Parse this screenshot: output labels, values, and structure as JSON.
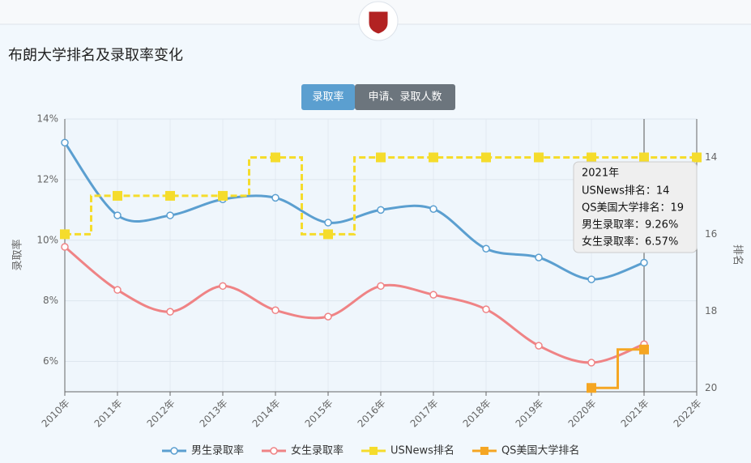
{
  "header": {
    "title": "布朗大学排名及录取率变化",
    "tabs": [
      "录取率",
      "申请、录取人数"
    ]
  },
  "chart_data": {
    "type": "line",
    "categories": [
      "2010年",
      "2011年",
      "2012年",
      "2013年",
      "2014年",
      "2015年",
      "2016年",
      "2017年",
      "2018年",
      "2019年",
      "2020年",
      "2021年",
      "2022年"
    ],
    "ylabel": "录取率",
    "y2label": "排名",
    "ylim": [
      5,
      14
    ],
    "yticks": [
      {
        "value": 6,
        "label": "6%"
      },
      {
        "value": 8,
        "label": "8%"
      },
      {
        "value": 10,
        "label": "10%"
      },
      {
        "value": 12,
        "label": "12%"
      },
      {
        "value": 14,
        "label": "14%"
      }
    ],
    "y2lim": [
      13,
      20.1
    ],
    "y2_inverted": true,
    "y2ticks": [
      14,
      16,
      18,
      20
    ],
    "series": [
      {
        "name": "男生录取率",
        "color": "#5b9fd0",
        "style": "smooth",
        "values": [
          13.22,
          10.82,
          10.82,
          11.35,
          11.4,
          10.58,
          11.0,
          11.03,
          9.72,
          9.43,
          8.71,
          9.26,
          null
        ]
      },
      {
        "name": "女生录取率",
        "color": "#ef8385",
        "style": "smooth",
        "values": [
          9.78,
          8.36,
          7.64,
          8.49,
          7.69,
          7.48,
          8.49,
          8.2,
          7.72,
          6.52,
          5.96,
          6.57,
          null
        ]
      },
      {
        "name": "USNews排名",
        "color": "#f5dc2c",
        "style": "step",
        "axis": "y2",
        "values": [
          16,
          15,
          15,
          15,
          14,
          16,
          14,
          14,
          14,
          14,
          14,
          14,
          14
        ]
      },
      {
        "name": "QS美国大学排名",
        "color": "#f5a623",
        "style": "step",
        "axis": "y2",
        "values": [
          null,
          null,
          null,
          null,
          null,
          null,
          null,
          null,
          null,
          null,
          20,
          19,
          null
        ]
      }
    ],
    "tooltip": {
      "title": "2021年",
      "lines": [
        "USNews排名：14",
        "QS美国大学排名：19",
        "男生录取率：9.26%",
        "女生录取率：6.57%"
      ]
    }
  }
}
